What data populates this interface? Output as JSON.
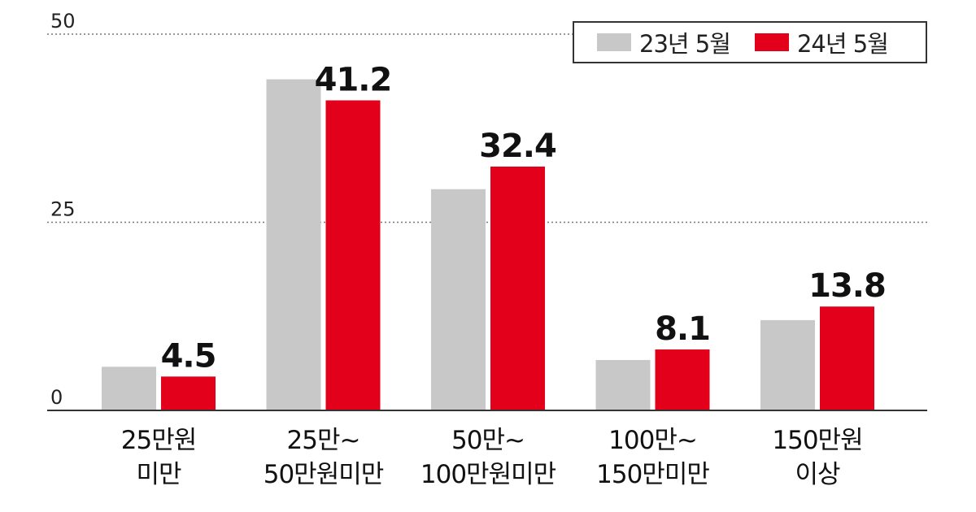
{
  "chart_data": {
    "type": "bar",
    "categories": [
      [
        "25만원",
        "미만"
      ],
      [
        "25만~",
        "50만원미만"
      ],
      [
        "50만~",
        "100만원미만"
      ],
      [
        "100만~",
        "150만미만"
      ],
      [
        "150만원",
        "이상"
      ]
    ],
    "series": [
      {
        "name": "23년 5월",
        "color": "#c8c8c8",
        "values": [
          5.8,
          44.0,
          29.4,
          6.7,
          12.0
        ],
        "show_labels": false
      },
      {
        "name": "24년 5월",
        "color": "#e3001b",
        "values": [
          4.5,
          41.2,
          32.4,
          8.1,
          13.8
        ],
        "show_labels": true
      }
    ],
    "data_labels": [
      "4.5",
      "41.2",
      "32.4",
      "8.1",
      "13.8"
    ],
    "yticks": [
      0,
      25,
      50
    ],
    "ylim": [
      0,
      50
    ],
    "grid": "dotted at 25 and 50",
    "legend": "top-right, boxed"
  }
}
